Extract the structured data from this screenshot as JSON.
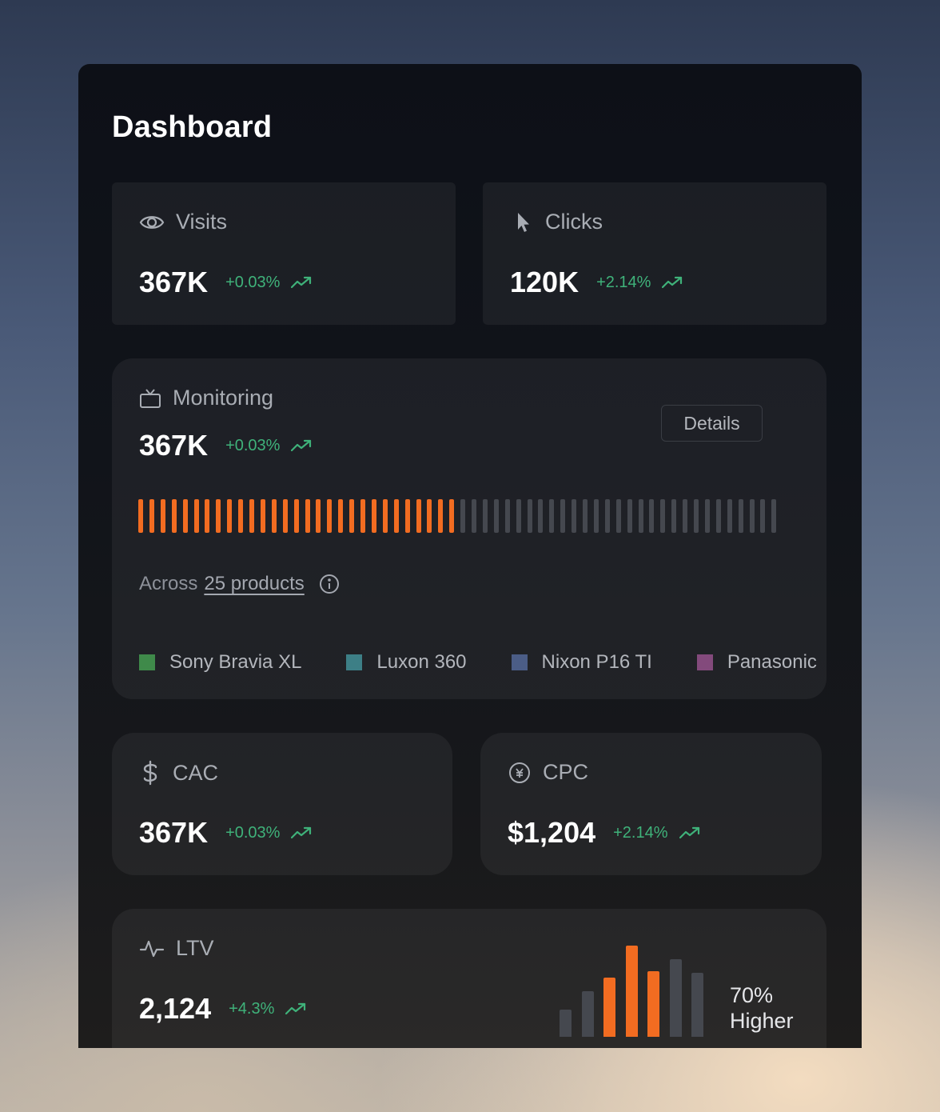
{
  "page": {
    "title": "Dashboard"
  },
  "visits": {
    "label": "Visits",
    "value": "367K",
    "delta": "+0.03%",
    "icon": "eye-icon"
  },
  "clicks": {
    "label": "Clicks",
    "value": "120K",
    "delta": "+2.14%",
    "icon": "cursor-icon"
  },
  "monitoring": {
    "label": "Monitoring",
    "value": "367K",
    "delta": "+0.03%",
    "icon": "tv-icon",
    "details_label": "Details",
    "progress_filled_fraction": 0.5,
    "across_prefix": "Across",
    "across_link": "25 products",
    "legend": [
      {
        "label": "Sony Bravia XL",
        "color": "#3f8a4a"
      },
      {
        "label": "Luxon 360",
        "color": "#3d7f86"
      },
      {
        "label": "Nixon P16 TI",
        "color": "#4b5d86"
      },
      {
        "label": "Panasonic",
        "color": "#834a7c"
      }
    ]
  },
  "cac": {
    "label": "CAC",
    "value": "367K",
    "delta": "+0.03%",
    "icon": "dollar-icon"
  },
  "cpc": {
    "label": "CPC",
    "value": "$1,204",
    "delta": "+2.14%",
    "icon": "coin-icon"
  },
  "ltv": {
    "label": "LTV",
    "value": "2,124",
    "delta": "+4.3%",
    "icon": "activity-icon",
    "summary_line1": "70%",
    "summary_line2": "Higher",
    "bar_values": [
      30,
      50,
      65,
      100,
      72,
      85,
      70
    ],
    "bar_highlight": [
      false,
      false,
      true,
      true,
      true,
      false,
      false
    ]
  },
  "colors": {
    "accent": "#f26c21",
    "positive": "#3fb27a",
    "inactive_bar": "#45484f"
  }
}
